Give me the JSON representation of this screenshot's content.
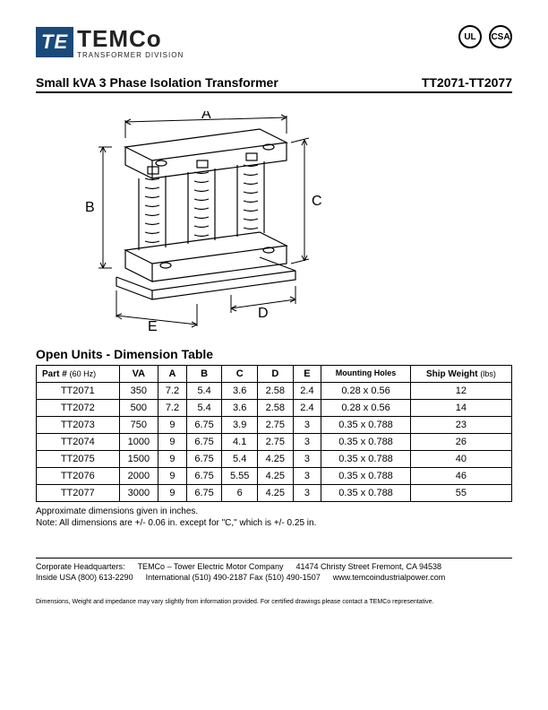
{
  "logo": {
    "box": "TE",
    "name": "TEMCo",
    "sub": "TRANSFORMER DIVISION"
  },
  "certs": [
    "UL",
    "CSA"
  ],
  "title_left": "Small kVA 3 Phase Isolation Transformer",
  "title_right": "TT2071-TT2077",
  "dim_labels": {
    "A": "A",
    "B": "B",
    "C": "C",
    "D": "D",
    "E": "E"
  },
  "table_title": "Open Units - Dimension Table",
  "columns": {
    "part": "Part #",
    "hz": "(60 Hz)",
    "va": "VA",
    "a": "A",
    "b": "B",
    "c": "C",
    "d": "D",
    "e": "E",
    "mh": "Mounting Holes",
    "sw": "Ship Weight",
    "sw_unit": "(lbs)"
  },
  "rows": [
    {
      "part": "TT2071",
      "va": "350",
      "a": "7.2",
      "b": "5.4",
      "c": "3.6",
      "d": "2.58",
      "e": "2.4",
      "mh": "0.28 x 0.56",
      "sw": "12"
    },
    {
      "part": "TT2072",
      "va": "500",
      "a": "7.2",
      "b": "5.4",
      "c": "3.6",
      "d": "2.58",
      "e": "2.4",
      "mh": "0.28 x 0.56",
      "sw": "14"
    },
    {
      "part": "TT2073",
      "va": "750",
      "a": "9",
      "b": "6.75",
      "c": "3.9",
      "d": "2.75",
      "e": "3",
      "mh": "0.35 x 0.788",
      "sw": "23"
    },
    {
      "part": "TT2074",
      "va": "1000",
      "a": "9",
      "b": "6.75",
      "c": "4.1",
      "d": "2.75",
      "e": "3",
      "mh": "0.35 x 0.788",
      "sw": "26"
    },
    {
      "part": "TT2075",
      "va": "1500",
      "a": "9",
      "b": "6.75",
      "c": "5.4",
      "d": "4.25",
      "e": "3",
      "mh": "0.35 x 0.788",
      "sw": "40"
    },
    {
      "part": "TT2076",
      "va": "2000",
      "a": "9",
      "b": "6.75",
      "c": "5.55",
      "d": "4.25",
      "e": "3",
      "mh": "0.35 x 0.788",
      "sw": "46"
    },
    {
      "part": "TT2077",
      "va": "3000",
      "a": "9",
      "b": "6.75",
      "c": "6",
      "d": "4.25",
      "e": "3",
      "mh": "0.35 x 0.788",
      "sw": "55"
    }
  ],
  "note1": "Approximate dimensions given in inches.",
  "note2": "Note: All dimensions are +/- 0.06 in. except for \"C,\" which is +/- 0.25 in.",
  "footer": {
    "hq_label": "Corporate Headquarters:",
    "hq_company": "TEMCo – Tower Electric Motor Company",
    "hq_addr": "41474 Christy Street Fremont, CA 94538",
    "phone_label": "Inside USA (800) 613-2290",
    "intl": "International  (510) 490-2187  Fax (510) 490-1507",
    "web": "www.temcoindustrialpower.com"
  },
  "disclaimer": "Dimensions, Weight and impedance may vary slightly from information provided. For certified drawings please contact a TEMCo representative."
}
